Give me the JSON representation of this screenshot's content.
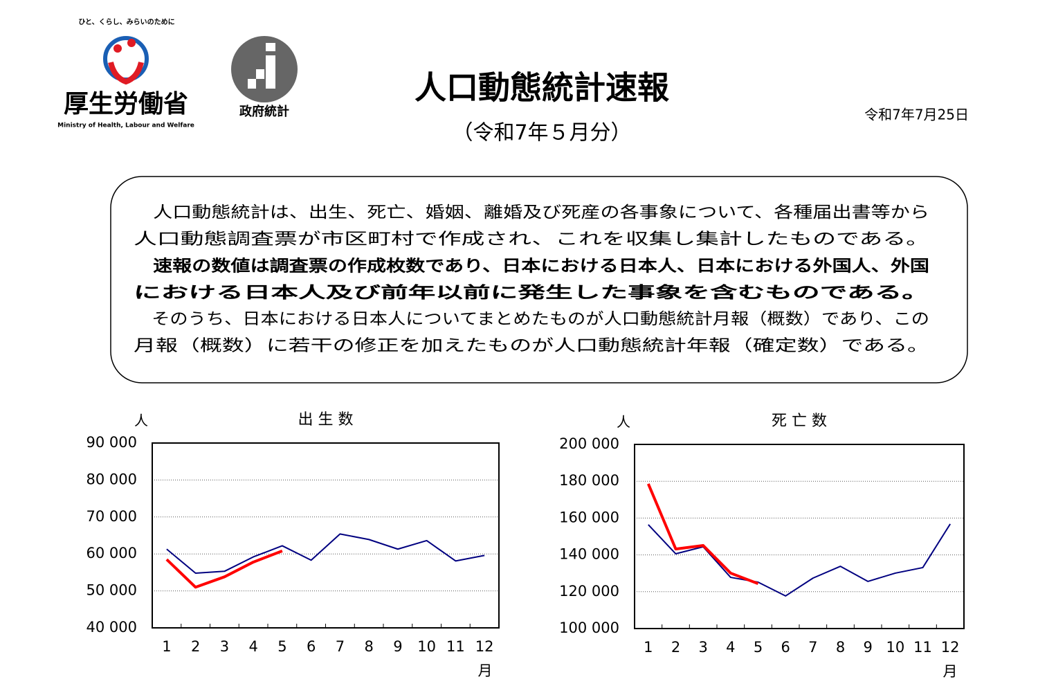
{
  "header": {
    "tagline": "ひと、くらし、みらいのために",
    "ministry": "厚生労働省",
    "ministry_en": "Ministry of Health, Labour and Welfare",
    "stats_logo": "政府統計",
    "title": "人口動態統計速報",
    "subtitle": "（令和7年５月分）",
    "date": "令和7年7月25日"
  },
  "notice": {
    "paragraphs": [
      {
        "bold": false,
        "lines": [
          "　人口動態統計は、出生、死亡、婚姻、離婚及び死産の各事象について、各種届出書等から",
          "人口動態調査票が市区町村で作成され、これを収集し集計したものである。"
        ]
      },
      {
        "bold": true,
        "lines": [
          "　速報の数値は調査票の作成枚数であり、日本における日本人、日本における外国人、外国",
          "における日本人及び前年以前に発生した事象を含むものである。"
        ]
      },
      {
        "bold": false,
        "lines": [
          "　そのうち、日本における日本人についてまとめたものが人口動態統計月報（概数）であり、この",
          "月報（概数）に若干の修正を加えたものが人口動態統計年報（確定数）である。"
        ]
      }
    ]
  },
  "chart_data": [
    {
      "type": "line",
      "title": "出 生 数",
      "y_unit_label": "人",
      "x_unit_label": "月",
      "categories": [
        "1",
        "2",
        "3",
        "4",
        "5",
        "6",
        "7",
        "8",
        "9",
        "10",
        "11",
        "12"
      ],
      "series": [
        {
          "color": "#000080",
          "values": [
            61300,
            54800,
            55300,
            59200,
            62200,
            58300,
            65400,
            63900,
            61300,
            63600,
            58100,
            59600
          ]
        },
        {
          "color": "#ff0000",
          "values": [
            58500,
            51000,
            53800,
            57800,
            60800,
            null,
            null,
            null,
            null,
            null,
            null,
            null
          ]
        }
      ],
      "ylim": [
        40000,
        90000
      ],
      "yticks": [
        {
          "value": 40000,
          "label": "40 000"
        },
        {
          "value": 50000,
          "label": "50 000"
        },
        {
          "value": 60000,
          "label": "60 000"
        },
        {
          "value": 70000,
          "label": "70 000"
        },
        {
          "value": 80000,
          "label": "80 000"
        },
        {
          "value": 90000,
          "label": "90 000"
        }
      ],
      "grid": true
    },
    {
      "type": "line",
      "title": "死 亡 数",
      "y_unit_label": "人",
      "x_unit_label": "月",
      "categories": [
        "1",
        "2",
        "3",
        "4",
        "5",
        "6",
        "7",
        "8",
        "9",
        "10",
        "11",
        "12"
      ],
      "series": [
        {
          "color": "#000080",
          "values": [
            156400,
            140600,
            144400,
            127800,
            125200,
            117700,
            127400,
            133800,
            125600,
            130100,
            133100,
            156800
          ]
        },
        {
          "color": "#ff0000",
          "values": [
            178600,
            143200,
            145100,
            130100,
            124400,
            null,
            null,
            null,
            null,
            null,
            null,
            null
          ]
        }
      ],
      "ylim": [
        100000,
        200000
      ],
      "yticks": [
        {
          "value": 100000,
          "label": "100 000"
        },
        {
          "value": 120000,
          "label": "120 000"
        },
        {
          "value": 140000,
          "label": "140 000"
        },
        {
          "value": 160000,
          "label": "160 000"
        },
        {
          "value": 180000,
          "label": "180 000"
        },
        {
          "value": 200000,
          "label": "200 000"
        }
      ],
      "grid": true
    }
  ]
}
